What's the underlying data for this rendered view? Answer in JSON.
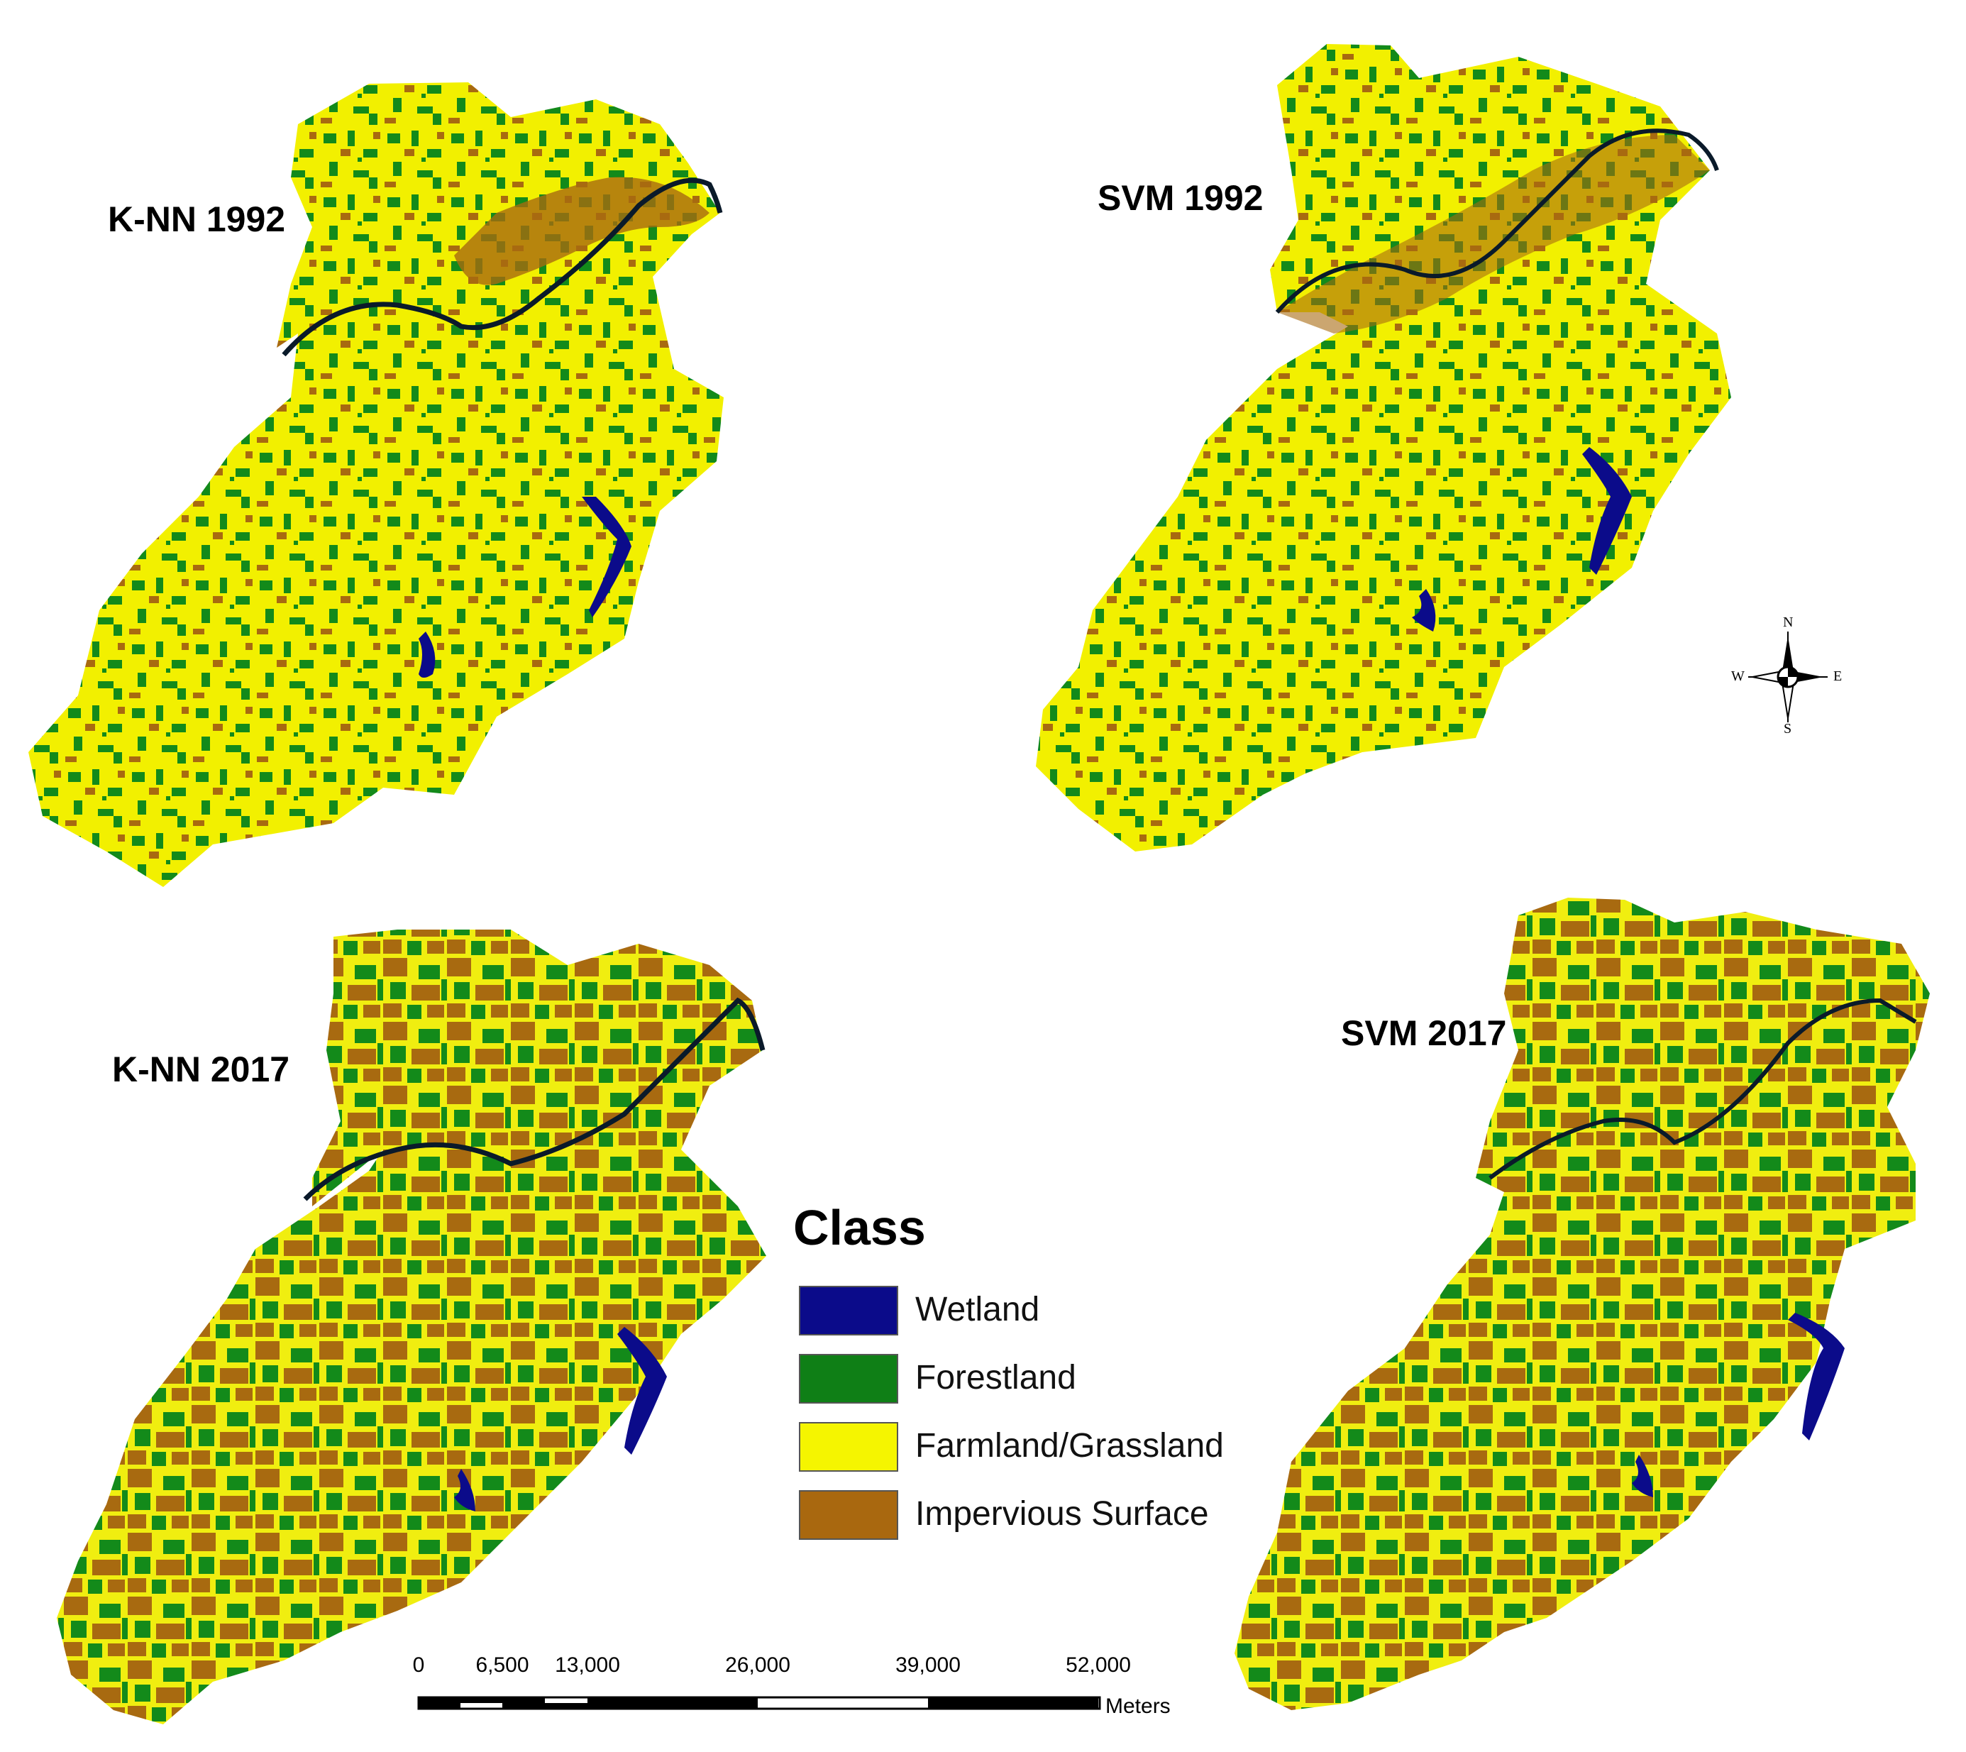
{
  "panels": [
    {
      "title": "K-NN 1992"
    },
    {
      "title": "SVM 1992"
    },
    {
      "title": "K-NN 2017"
    },
    {
      "title": "SVM 2017"
    }
  ],
  "legend": {
    "title": "Class",
    "items": [
      {
        "label": "Wetland",
        "color": "#0b0b8a"
      },
      {
        "label": "Forestland",
        "color": "#0f7f16"
      },
      {
        "label": "Farmland/Grassland",
        "color": "#f5f500"
      },
      {
        "label": "Impervious Surface",
        "color": "#a9680f"
      }
    ]
  },
  "scalebar": {
    "ticks": [
      "0",
      "6,500",
      "13,000",
      "26,000",
      "39,000",
      "52,000"
    ],
    "units": "Meters"
  },
  "north_arrow": {
    "n": "N",
    "s": "S",
    "e": "E",
    "w": "W"
  }
}
